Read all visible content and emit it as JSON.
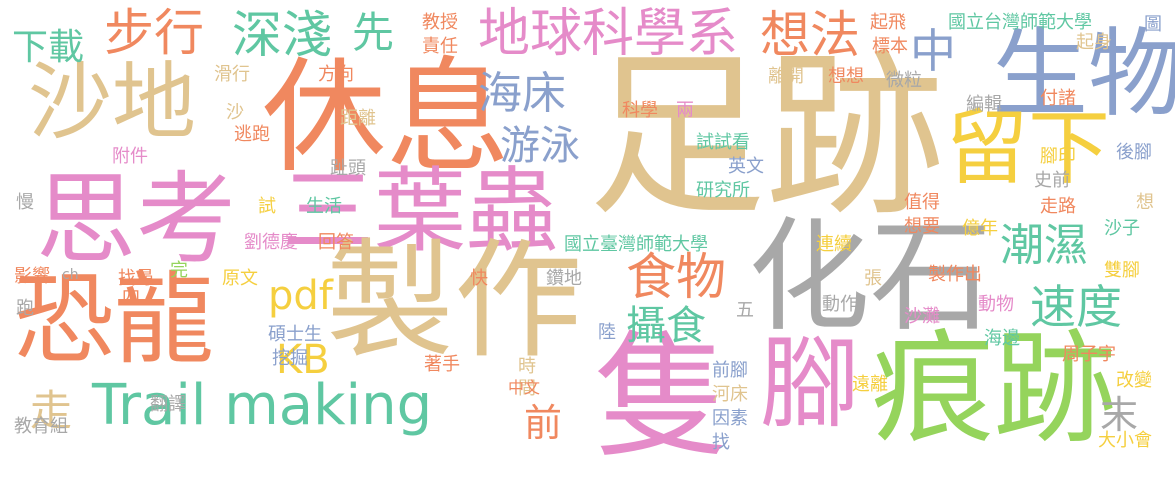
{
  "palette": {
    "tan": "#e0c48f",
    "pink": "#e58bc9",
    "orange": "#f0885f",
    "green": "#95d45c",
    "teal": "#5fc7a2",
    "yellow": "#f5cf3f",
    "gray": "#a8a8a8",
    "blue": "#8aa0cc"
  },
  "words": [
    "足跡",
    "休息",
    "思考",
    "三葉蟲",
    "恐龍",
    "製作",
    "化石",
    "生物",
    "沙地",
    "留下",
    "隻",
    "腳",
    "痕跡",
    "地球科學系",
    "Trail making",
    "步行",
    "深淺",
    "先",
    "想法",
    "中",
    "海床",
    "游泳",
    "食物",
    "攝食",
    "潮濕",
    "速度",
    "pdf",
    "KB",
    "走",
    "前",
    "末",
    "下載",
    "滑行",
    "方向",
    "教授",
    "責任",
    "起飛",
    "國立台灣師範大學",
    "標本",
    "圖",
    "起身",
    "想想",
    "微粒",
    "離開",
    "付諸",
    "編輯",
    "後腳",
    "腳印",
    "史前",
    "走路",
    "值得",
    "想要",
    "億年",
    "沙子",
    "連續",
    "雙腳",
    "科學",
    "兩",
    "試試看",
    "英文",
    "研究所",
    "距離",
    "逃跑",
    "附件",
    "沙",
    "趾頭",
    "慢",
    "試",
    "生活",
    "劉德慶",
    "回答",
    "國立臺灣師範大學",
    "影響",
    "ch",
    "找尋",
    "完",
    "四",
    "原文",
    "快",
    "鑽地",
    "張",
    "製作出",
    "動作",
    "動物",
    "五",
    "沙灘",
    "跑",
    "碩士生",
    "挖掘",
    "陸",
    "海邊",
    "周子宇",
    "著手",
    "時",
    "間",
    "前腳",
    "遠離",
    "改變",
    "河床",
    "翻譯",
    "中文",
    "因素",
    "找",
    "教育組",
    "大小會",
    "想"
  ]
}
